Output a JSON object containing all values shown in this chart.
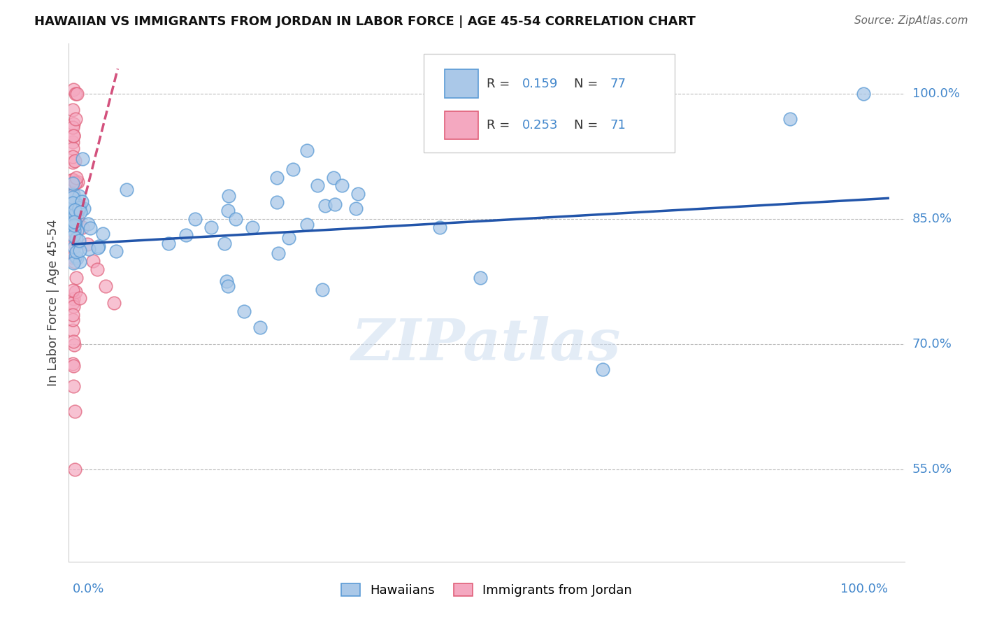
{
  "title": "HAWAIIAN VS IMMIGRANTS FROM JORDAN IN LABOR FORCE | AGE 45-54 CORRELATION CHART",
  "source": "Source: ZipAtlas.com",
  "ylabel": "In Labor Force | Age 45-54",
  "hawaiian_color": "#aac8e8",
  "hawaiian_edge": "#5b9bd5",
  "jordan_color": "#f4a8c0",
  "jordan_edge": "#e0607a",
  "trend_blue": "#2255aa",
  "trend_pink": "#cc3366",
  "R_hawaiian": "0.159",
  "N_hawaiian": "77",
  "R_jordan": "0.253",
  "N_jordan": "71",
  "watermark": "ZIPatlas",
  "ytick_vals": [
    0.55,
    0.7,
    0.85,
    1.0
  ],
  "ytick_labels": [
    "55.0%",
    "70.0%",
    "85.0%",
    "100.0%"
  ],
  "xlim": [
    -0.005,
    1.02
  ],
  "ylim": [
    0.44,
    1.06
  ]
}
